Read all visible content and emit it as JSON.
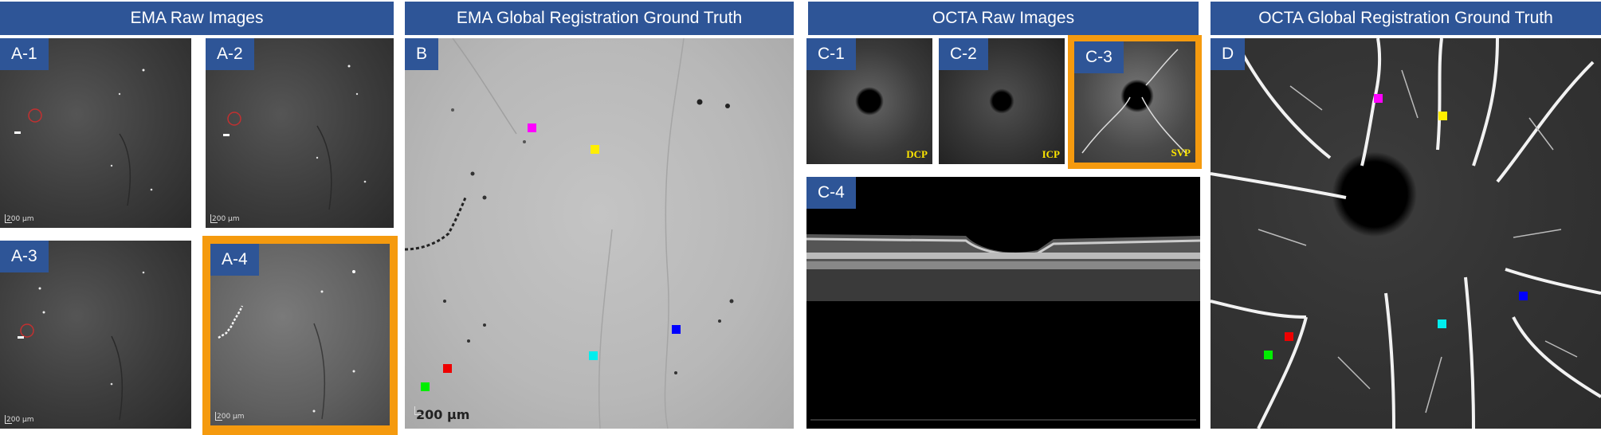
{
  "headers": {
    "ema_raw": "EMA Raw Images",
    "ema_global": "EMA Global Registration Ground Truth",
    "octa_raw": "OCTA Raw Images",
    "octa_global": "OCTA Global Registration Ground Truth"
  },
  "panels": {
    "a1": "A-1",
    "a2": "A-2",
    "a3": "A-3",
    "a4": "A-4",
    "b": "B",
    "c1": "C-1",
    "c2": "C-2",
    "c3": "C-3",
    "c4": "C-4",
    "d": "D"
  },
  "scale_bar": "200 µm",
  "layer_labels": {
    "c1": "DCP",
    "c2": "ICP",
    "c3": "SVP"
  },
  "colors": {
    "header_bg": "#2e5597",
    "highlight": "#f59a0e",
    "marker_magenta": "#ff00ff",
    "marker_yellow": "#ffee00",
    "marker_blue": "#0000ff",
    "marker_cyan": "#00eeee",
    "marker_red": "#ee0000",
    "marker_green": "#00ee00"
  }
}
